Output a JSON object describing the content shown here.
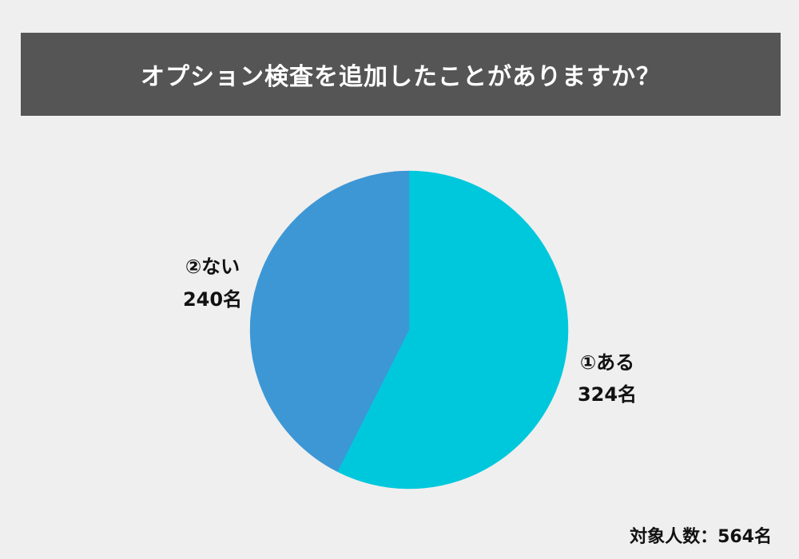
{
  "title": "オプション検査を追加したことがありますか？",
  "footer_note": "対象人数：564名",
  "chart_data": {
    "type": "pie",
    "title": "オプション検査を追加したことがありますか？",
    "total_label": "対象人数：564名",
    "slices": [
      {
        "label": "①ある",
        "value": 324,
        "value_label": "324名",
        "color": "#00c8dc"
      },
      {
        "label": "②ない",
        "value": 240,
        "value_label": "240名",
        "color": "#3d97d5"
      }
    ]
  }
}
